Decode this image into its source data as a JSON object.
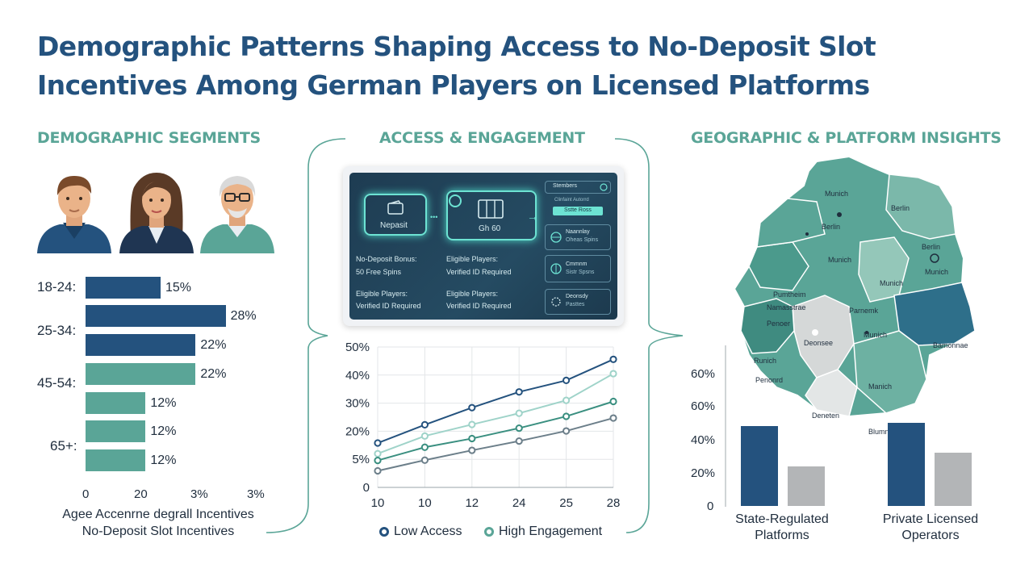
{
  "title": "Demographic Patterns Shaping Access to No-Deposit Slot Incentives Among German Players on Licensed Platforms",
  "sections": {
    "demographic": "DEMOGRAPHIC SEGMENTS",
    "access": "ACCESS & ENGAGEMENT",
    "geo": "GEOGRAPHIC & PLATFORM INSIGHTS"
  },
  "colors": {
    "navy": "#24527e",
    "teal": "#5aa597",
    "gray": "#b3b5b7",
    "dark": "#1f2d3d"
  },
  "avatars": [
    {
      "icon": "young-man-avatar-icon"
    },
    {
      "icon": "woman-avatar-icon"
    },
    {
      "icon": "senior-man-avatar-icon"
    }
  ],
  "age_chart": {
    "type": "bar",
    "orientation": "horizontal",
    "age_labels": [
      "18-24:",
      "25-34:",
      "45-54:",
      "65+:"
    ],
    "bars": [
      {
        "value": 15,
        "label": "15%",
        "color": "#24527e"
      },
      {
        "value": 28,
        "label": "28%",
        "color": "#24527e"
      },
      {
        "value": 22,
        "label": "22%",
        "color": "#24527e"
      },
      {
        "value": 22,
        "label": "22%",
        "color": "#5aa597"
      },
      {
        "value": 12,
        "label": "12%",
        "color": "#5aa597"
      },
      {
        "value": 12,
        "label": "12%",
        "color": "#5aa597"
      },
      {
        "value": 12,
        "label": "12%",
        "color": "#5aa597"
      }
    ],
    "x_ticks": [
      "0",
      "20",
      "3%",
      "3%"
    ],
    "caption_line1": "Agee Accenrne degrall Incentives",
    "caption_line2": "No-Deposit Slot Incentives"
  },
  "panel": {
    "box1_label": "Nepasit",
    "box2_label": "Gh 60",
    "rows": [
      [
        "No-Deposit Bonus:",
        "Eligible Players:"
      ],
      [
        "50 Free Spins",
        "Verified ID Required"
      ],
      [
        "Eligible Players:",
        "Eligible Players:"
      ],
      [
        "Verified ID Required",
        "Verified ID Required"
      ]
    ],
    "side": {
      "tab1": "Stembers",
      "sub1": "Clinfaint Autorrd",
      "tab2": "Sstte Ross",
      "item1_title": "Naannlay",
      "item1_sub": "Oheas Spins",
      "item2_title": "Cmmnm",
      "item2_sub": "Sistr Spsns",
      "item3_title": "Deonsdy",
      "item3_sub": "Pasttes"
    }
  },
  "line_chart": {
    "type": "line",
    "x": [
      "10",
      "10",
      "12",
      "24",
      "25",
      "28"
    ],
    "y_ticks": [
      "50%",
      "40%",
      "30%",
      "20%",
      "5%",
      "0"
    ],
    "ylim": [
      0,
      50
    ],
    "series": [
      {
        "name": "Low Access",
        "color": "#24527e",
        "values": [
          15.8,
          22.3,
          28.4,
          34,
          38.1,
          45.6
        ]
      },
      {
        "color": "#9fd3c9",
        "values": [
          12,
          18.3,
          22.4,
          26.4,
          31,
          40.5
        ]
      },
      {
        "name": "High Engagement",
        "color": "#3a8f80",
        "values": [
          9.6,
          14.3,
          17.4,
          21.1,
          25.3,
          30.6
        ]
      },
      {
        "color": "#6c7f8a",
        "values": [
          5.9,
          9.7,
          13.2,
          16.5,
          20.1,
          24.7
        ]
      }
    ],
    "legend": [
      "Low Access",
      "High Engagement"
    ]
  },
  "map": {
    "labels": [
      "Munich",
      "Berlin",
      "Berlin",
      "Munich",
      "Berlin",
      "Munich",
      "Munich",
      "Pumtheim",
      "Namasstrae",
      "Penoer",
      "Parnemk",
      "Munich",
      "Deonsee",
      "Bamonnae",
      "Runich",
      "Penonrd",
      "Manich",
      "Deneten",
      "Blumn"
    ]
  },
  "platform_chart": {
    "type": "bar",
    "y_ticks": [
      "60%",
      "60%",
      "40%",
      "20%",
      "0"
    ],
    "ylim": [
      0,
      80
    ],
    "groups": [
      {
        "label_line1": "State-Regulated",
        "label_line2": "Platforms",
        "values": [
          48,
          24
        ]
      },
      {
        "label_line1": "Private Licensed",
        "label_line2": "Operators",
        "values": [
          50,
          32
        ]
      }
    ],
    "colors": [
      "#24527e",
      "#b3b5b7"
    ]
  }
}
